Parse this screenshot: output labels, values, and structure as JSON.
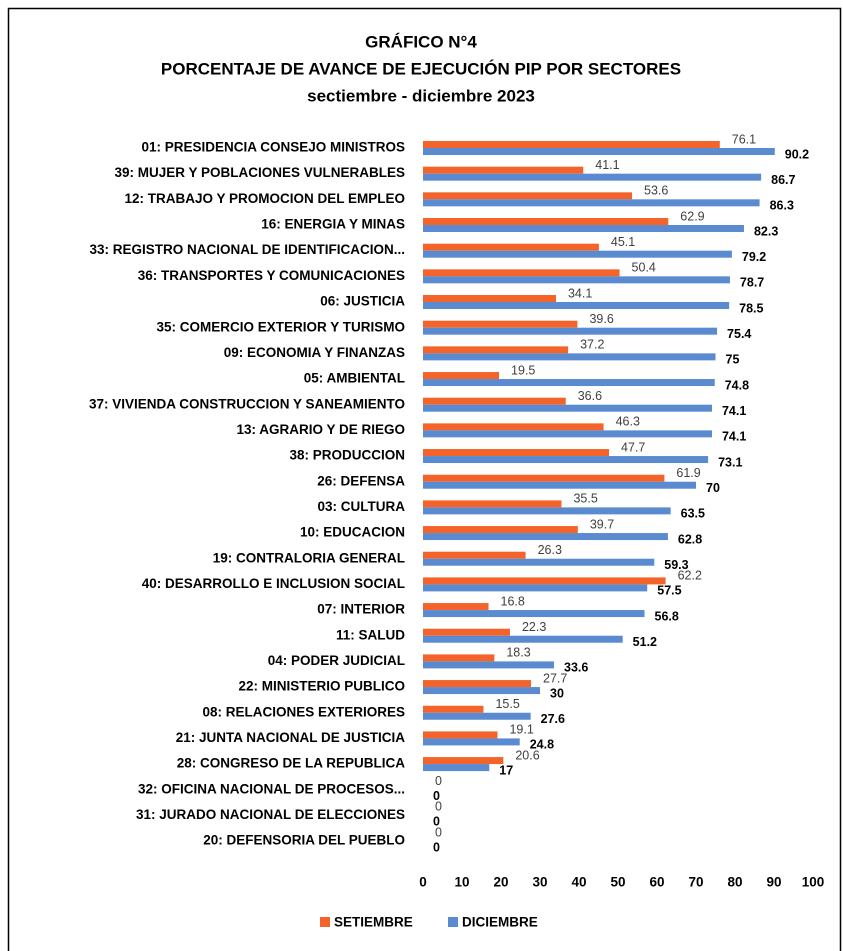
{
  "chart_data": {
    "type": "bar",
    "orientation": "horizontal",
    "title_lines": [
      "GRÁFICO N°4",
      "PORCENTAJE DE AVANCE DE EJECUCIÓN PIP POR SECTORES",
      "sectiembre - diciembre 2023"
    ],
    "categories": [
      "01: PRESIDENCIA CONSEJO MINISTROS",
      "39: MUJER Y POBLACIONES VULNERABLES",
      "12: TRABAJO Y PROMOCION DEL EMPLEO",
      "16: ENERGIA Y MINAS",
      "33: REGISTRO NACIONAL DE IDENTIFICACION...",
      "36: TRANSPORTES Y COMUNICACIONES",
      "06: JUSTICIA",
      "35: COMERCIO EXTERIOR Y TURISMO",
      "09: ECONOMIA Y FINANZAS",
      "05: AMBIENTAL",
      "37: VIVIENDA CONSTRUCCION Y SANEAMIENTO",
      "13: AGRARIO Y DE RIEGO",
      "38: PRODUCCION",
      "26: DEFENSA",
      "03: CULTURA",
      "10: EDUCACION",
      "19: CONTRALORIA GENERAL",
      "40: DESARROLLO E INCLUSION SOCIAL",
      "07: INTERIOR",
      "11: SALUD",
      "04: PODER JUDICIAL",
      "22: MINISTERIO PUBLICO",
      "08: RELACIONES EXTERIORES",
      "21: JUNTA NACIONAL DE JUSTICIA",
      "28: CONGRESO DE LA REPUBLICA",
      "32: OFICINA NACIONAL DE PROCESOS...",
      "31: JURADO NACIONAL DE ELECCIONES",
      "20: DEFENSORIA DEL PUEBLO"
    ],
    "series": [
      {
        "name": "SETIEMBRE",
        "color": "#f4642a",
        "values": [
          76.1,
          41.1,
          53.6,
          62.9,
          45.1,
          50.4,
          34.1,
          39.6,
          37.2,
          19.5,
          36.6,
          46.3,
          47.7,
          61.9,
          35.5,
          39.7,
          26.3,
          62.2,
          16.8,
          22.3,
          18.3,
          27.7,
          15.5,
          19.1,
          20.6,
          0,
          0,
          0
        ]
      },
      {
        "name": "DICIEMBRE",
        "color": "#5a8ad0",
        "values": [
          90.2,
          86.7,
          86.3,
          82.3,
          79.2,
          78.7,
          78.5,
          75.4,
          75,
          74.8,
          74.1,
          74.1,
          73.1,
          70,
          63.5,
          62.8,
          59.3,
          57.5,
          56.8,
          51.2,
          33.6,
          30,
          27.6,
          24.8,
          17,
          0,
          0,
          0
        ]
      }
    ],
    "xlim": [
      0,
      100
    ],
    "xticks": [
      0,
      10,
      20,
      30,
      40,
      50,
      60,
      70,
      80,
      90,
      100
    ],
    "grid": false,
    "legend": "bottom"
  }
}
